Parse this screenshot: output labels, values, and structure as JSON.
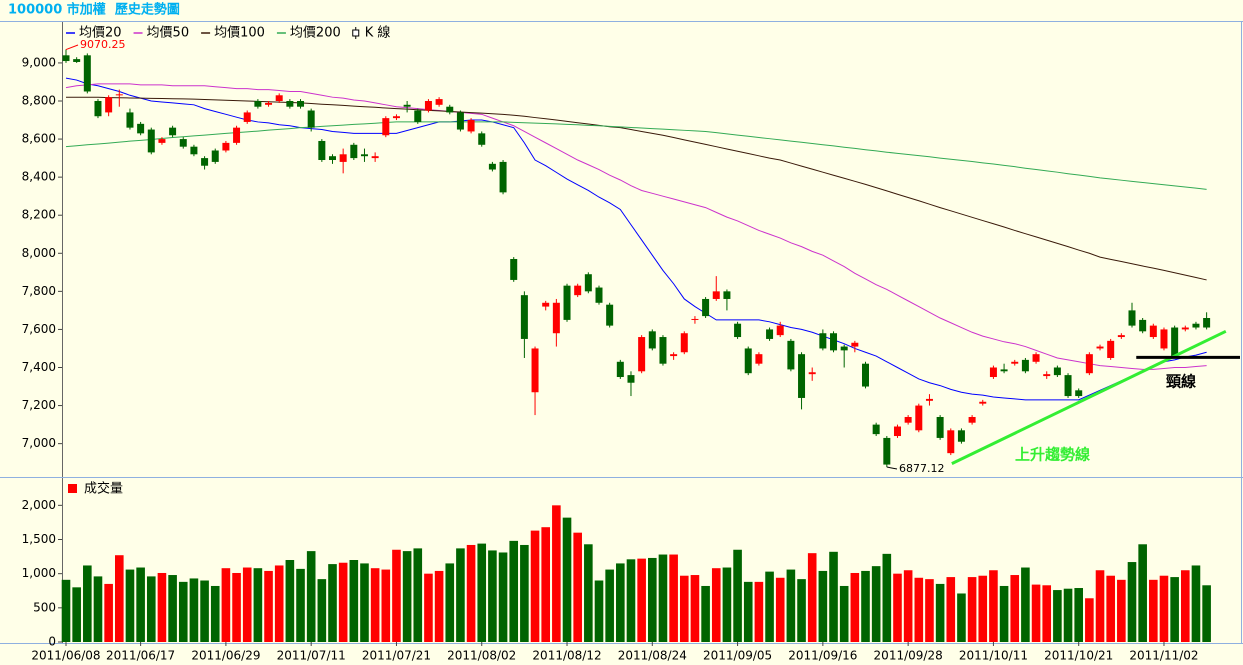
{
  "chart_data": {
    "type": "candlestick",
    "title": "100000 市加權  歷史走勢圖",
    "candle_name": "K 線",
    "up_color": "#ff0000",
    "down_color": "#006400",
    "categories": [
      "2011/06/08",
      null,
      null,
      null,
      null,
      null,
      null,
      "2011/06/17",
      null,
      null,
      null,
      null,
      null,
      null,
      null,
      "2011/06/29",
      null,
      null,
      null,
      null,
      null,
      null,
      null,
      "2011/07/11",
      null,
      null,
      null,
      null,
      null,
      null,
      null,
      "2011/07/21",
      null,
      null,
      null,
      null,
      null,
      null,
      null,
      "2011/08/02",
      null,
      null,
      null,
      null,
      null,
      null,
      null,
      "2011/08/12",
      null,
      null,
      null,
      null,
      null,
      null,
      null,
      "2011/08/24",
      null,
      null,
      null,
      null,
      null,
      null,
      null,
      "2011/09/05",
      null,
      null,
      null,
      null,
      null,
      null,
      null,
      "2011/09/16",
      null,
      null,
      null,
      null,
      null,
      null,
      null,
      "2011/09/28",
      null,
      null,
      null,
      null,
      null,
      null,
      null,
      "2011/10/11",
      null,
      null,
      null,
      null,
      null,
      null,
      null,
      "2011/10/21",
      null,
      null,
      null,
      null,
      null,
      null,
      null,
      "2011/11/02",
      null,
      null,
      null,
      null
    ],
    "open": [
      9040,
      9020,
      9040,
      8800,
      8740,
      8830,
      8740,
      8680,
      8650,
      8580,
      8660,
      8600,
      8560,
      8500,
      8540,
      8540,
      8580,
      8690,
      8800,
      8780,
      8800,
      8800,
      8800,
      8750,
      8590,
      8510,
      8480,
      8570,
      8520,
      8500,
      8620,
      8710,
      8780,
      8750,
      8750,
      8780,
      8770,
      8740,
      8640,
      8630,
      8470,
      8480,
      7970,
      7780,
      7270,
      7720,
      7580,
      7830,
      7780,
      7890,
      7820,
      7730,
      7430,
      7360,
      7380,
      7590,
      7560,
      7460,
      7480,
      7650,
      7760,
      7760,
      7800,
      7630,
      7500,
      7420,
      7600,
      7570,
      7540,
      7470,
      7365,
      7580,
      7580,
      7510,
      7510,
      7420,
      7100,
      7030,
      7040,
      7110,
      7070,
      7225,
      7140,
      6950,
      7070,
      7110,
      7210,
      7350,
      7390,
      7420,
      7440,
      7430,
      7355,
      7400,
      7360,
      7280,
      7370,
      7500,
      7450,
      7560,
      7700,
      7650,
      7560,
      7500,
      7610,
      7600,
      7630,
      7660
    ],
    "high": [
      9070.25,
      9030,
      9050,
      8810,
      8830,
      8860,
      8760,
      8690,
      8660,
      8610,
      8670,
      8610,
      8570,
      8510,
      8550,
      8590,
      8670,
      8750,
      8810,
      8800,
      8840,
      8810,
      8810,
      8760,
      8600,
      8520,
      8550,
      8580,
      8550,
      8530,
      8720,
      8730,
      8800,
      8760,
      8810,
      8820,
      8780,
      8750,
      8710,
      8640,
      8480,
      8490,
      7980,
      7800,
      7510,
      7750,
      7760,
      7840,
      7840,
      7900,
      7830,
      7740,
      7440,
      7380,
      7570,
      7600,
      7570,
      7480,
      7590,
      7670,
      7770,
      7880,
      7810,
      7640,
      7510,
      7480,
      7610,
      7640,
      7550,
      7480,
      7400,
      7600,
      7590,
      7520,
      7540,
      7430,
      7110,
      7040,
      7100,
      7150,
      7210,
      7260,
      7150,
      7080,
      7080,
      7150,
      7230,
      7410,
      7420,
      7440,
      7450,
      7480,
      7380,
      7410,
      7370,
      7290,
      7480,
      7520,
      7550,
      7580,
      7740,
      7660,
      7630,
      7610,
      7620,
      7620,
      7640,
      7690
    ],
    "low": [
      9000,
      9000,
      8840,
      8710,
      8720,
      8770,
      8650,
      8620,
      8520,
      8570,
      8610,
      8550,
      8510,
      8440,
      8470,
      8530,
      8570,
      8680,
      8760,
      8770,
      8790,
      8760,
      8760,
      8640,
      8480,
      8470,
      8420,
      8490,
      8480,
      8480,
      8610,
      8700,
      8740,
      8680,
      8740,
      8770,
      8730,
      8640,
      8630,
      8560,
      8430,
      8310,
      7850,
      7450,
      7150,
      7700,
      7510,
      7640,
      7770,
      7790,
      7730,
      7610,
      7340,
      7250,
      7370,
      7490,
      7410,
      7440,
      7470,
      7630,
      7660,
      7750,
      7700,
      7550,
      7360,
      7410,
      7540,
      7560,
      7380,
      7180,
      7330,
      7490,
      7480,
      7400,
      7480,
      7290,
      7040,
      6877.12,
      7030,
      7100,
      7060,
      7200,
      7020,
      6940,
      7000,
      7100,
      7200,
      7340,
      7370,
      7410,
      7370,
      7420,
      7340,
      7350,
      7240,
      7240,
      7360,
      7490,
      7440,
      7550,
      7610,
      7580,
      7550,
      7490,
      7450,
      7590,
      7600,
      7600
    ],
    "close": [
      9010,
      9005,
      8850,
      8720,
      8820,
      8835,
      8660,
      8630,
      8530,
      8600,
      8620,
      8560,
      8520,
      8460,
      8480,
      8580,
      8660,
      8740,
      8770,
      8790,
      8830,
      8770,
      8770,
      8660,
      8490,
      8490,
      8520,
      8500,
      8510,
      8510,
      8710,
      8720,
      8770,
      8690,
      8800,
      8810,
      8740,
      8650,
      8700,
      8570,
      8440,
      8320,
      7860,
      7550,
      7500,
      7740,
      7740,
      7650,
      7830,
      7800,
      7740,
      7620,
      7350,
      7320,
      7560,
      7500,
      7420,
      7470,
      7580,
      7655,
      7670,
      7800,
      7760,
      7560,
      7370,
      7470,
      7550,
      7620,
      7390,
      7240,
      7375,
      7500,
      7490,
      7490,
      7530,
      7300,
      7050,
      6890,
      7090,
      7140,
      7200,
      7235,
      7030,
      7070,
      7010,
      7140,
      7220,
      7400,
      7380,
      7430,
      7380,
      7470,
      7365,
      7360,
      7250,
      7250,
      7470,
      7510,
      7540,
      7570,
      7620,
      7590,
      7620,
      7600,
      7460,
      7610,
      7610,
      7610
    ],
    "series": [
      {
        "name": "均價20",
        "color": "#0000ff",
        "values": [
          8920,
          8910,
          8890,
          8880,
          8865,
          8850,
          8830,
          8815,
          8800,
          8795,
          8790,
          8785,
          8780,
          8760,
          8745,
          8730,
          8715,
          8700,
          8690,
          8685,
          8675,
          8670,
          8660,
          8655,
          8650,
          8640,
          8635,
          8630,
          8630,
          8630,
          8630,
          8630,
          8645,
          8660,
          8675,
          8690,
          8690,
          8695,
          8700,
          8700,
          8690,
          8675,
          8660,
          8580,
          8490,
          8460,
          8425,
          8390,
          8360,
          8330,
          8295,
          8265,
          8230,
          8150,
          8070,
          7990,
          7910,
          7840,
          7760,
          7720,
          7685,
          7650,
          7650,
          7650,
          7650,
          7650,
          7640,
          7625,
          7610,
          7600,
          7585,
          7565,
          7545,
          7525,
          7500,
          7480,
          7460,
          7430,
          7400,
          7370,
          7340,
          7320,
          7305,
          7285,
          7270,
          7260,
          7255,
          7245,
          7240,
          7235,
          7230,
          7230,
          7230,
          7230,
          7230,
          7230,
          7255,
          7280,
          7305,
          7330,
          7355,
          7380,
          7405,
          7430,
          7440,
          7455,
          7465,
          7480
        ]
      },
      {
        "name": "均價50",
        "color": "#cc33cc",
        "values": [
          8870,
          8880,
          8885,
          8890,
          8890,
          8890,
          8890,
          8885,
          8885,
          8885,
          8880,
          8880,
          8880,
          8880,
          8875,
          8870,
          8865,
          8865,
          8860,
          8860,
          8855,
          8850,
          8850,
          8840,
          8830,
          8820,
          8815,
          8805,
          8800,
          8790,
          8780,
          8770,
          8765,
          8760,
          8755,
          8750,
          8745,
          8740,
          8735,
          8730,
          8710,
          8690,
          8670,
          8640,
          8610,
          8580,
          8550,
          8520,
          8490,
          8465,
          8440,
          8410,
          8385,
          8355,
          8330,
          8315,
          8300,
          8285,
          8270,
          8255,
          8240,
          8215,
          8190,
          8170,
          8145,
          8120,
          8100,
          8080,
          8055,
          8035,
          8010,
          7990,
          7960,
          7930,
          7895,
          7865,
          7835,
          7810,
          7780,
          7750,
          7720,
          7690,
          7660,
          7635,
          7610,
          7585,
          7565,
          7550,
          7535,
          7525,
          7510,
          7490,
          7470,
          7450,
          7440,
          7430,
          7420,
          7410,
          7405,
          7400,
          7395,
          7390,
          7390,
          7395,
          7400,
          7400,
          7405,
          7410
        ]
      },
      {
        "name": "均價100",
        "color": "#3a1a0a",
        "values": [
          8820,
          8820,
          8820,
          8820,
          8818,
          8817,
          8816,
          8815,
          8814,
          8813,
          8812,
          8811,
          8810,
          8808,
          8806,
          8804,
          8802,
          8800,
          8798,
          8796,
          8794,
          8792,
          8790,
          8787,
          8783,
          8780,
          8777,
          8773,
          8770,
          8767,
          8763,
          8760,
          8757,
          8754,
          8751,
          8748,
          8745,
          8742,
          8739,
          8736,
          8733,
          8730,
          8725,
          8720,
          8713,
          8707,
          8700,
          8693,
          8686,
          8679,
          8672,
          8665,
          8660,
          8650,
          8640,
          8630,
          8620,
          8608,
          8596,
          8584,
          8572,
          8560,
          8548,
          8536,
          8524,
          8512,
          8500,
          8490,
          8474,
          8458,
          8442,
          8426,
          8410,
          8394,
          8378,
          8362,
          8345,
          8328,
          8310,
          8293,
          8276,
          8258,
          8240,
          8223,
          8206,
          8189,
          8172,
          8155,
          8138,
          8120,
          8103,
          8086,
          8069,
          8052,
          8035,
          8017,
          8000,
          7980,
          7968,
          7957,
          7945,
          7933,
          7922,
          7910,
          7898,
          7885,
          7873,
          7860
        ]
      },
      {
        "name": "均價200",
        "color": "#33aa55",
        "values": [
          8560,
          8565,
          8570,
          8574,
          8579,
          8584,
          8589,
          8593,
          8598,
          8603,
          8608,
          8612,
          8617,
          8621,
          8625,
          8630,
          8634,
          8638,
          8642,
          8647,
          8651,
          8655,
          8660,
          8663,
          8667,
          8670,
          8673,
          8677,
          8680,
          8683,
          8687,
          8690,
          8690,
          8690,
          8690,
          8690,
          8690,
          8690,
          8690,
          8690,
          8690,
          8690,
          8688,
          8686,
          8684,
          8682,
          8680,
          8677,
          8675,
          8672,
          8670,
          8667,
          8664,
          8661,
          8658,
          8655,
          8652,
          8649,
          8646,
          8643,
          8640,
          8634,
          8627,
          8621,
          8615,
          8608,
          8602,
          8596,
          8589,
          8583,
          8577,
          8570,
          8564,
          8557,
          8551,
          8544,
          8538,
          8531,
          8525,
          8519,
          8513,
          8507,
          8500,
          8494,
          8488,
          8482,
          8475,
          8469,
          8462,
          8455,
          8447,
          8440,
          8433,
          8426,
          8418,
          8411,
          8404,
          8396,
          8390,
          8384,
          8378,
          8372,
          8366,
          8360,
          8354,
          8348,
          8342,
          8336
        ]
      }
    ],
    "ylim": [
      6830,
      9215
    ],
    "yticks": [
      {
        "value": 7000,
        "label": "7,000"
      },
      {
        "value": 7200,
        "label": "7,200"
      },
      {
        "value": 7400,
        "label": "7,400"
      },
      {
        "value": 7600,
        "label": "7,600"
      },
      {
        "value": 7800,
        "label": "7,800"
      },
      {
        "value": 8000,
        "label": "8,000"
      },
      {
        "value": 8200,
        "label": "8,200"
      },
      {
        "value": 8400,
        "label": "8,400"
      },
      {
        "value": 8600,
        "label": "8,600"
      },
      {
        "value": 8800,
        "label": "8,800"
      },
      {
        "value": 9000,
        "label": "9,000"
      }
    ],
    "max_label": 9070.25,
    "min_label": 6877.12,
    "trend_line": {
      "label": "上升趨勢線",
      "color": "#33ee33",
      "x": [
        83.1,
        108.8
      ],
      "y": [
        6895,
        7590
      ]
    },
    "neck_line": {
      "label": "頸線",
      "color": "#000000",
      "x": [
        100.4,
        110.4
      ],
      "y": [
        7453,
        7453
      ]
    },
    "volume": {
      "name": "成交量",
      "ylim": [
        0,
        2400
      ],
      "yticks": [
        0,
        500,
        {
          "value": 1000,
          "label": "1,000"
        },
        {
          "value": 1500,
          "label": "1,500"
        },
        {
          "value": 2000,
          "label": "2,000"
        }
      ],
      "values": [
        910,
        800,
        1120,
        960,
        850,
        1270,
        1060,
        1090,
        960,
        1010,
        980,
        880,
        930,
        900,
        820,
        1080,
        1010,
        1090,
        1080,
        1040,
        1120,
        1200,
        1070,
        1330,
        920,
        1140,
        1160,
        1200,
        1150,
        1080,
        1060,
        1350,
        1330,
        1370,
        1000,
        1040,
        1150,
        1370,
        1420,
        1440,
        1340,
        1310,
        1480,
        1420,
        1630,
        1680,
        2000,
        1820,
        1600,
        1430,
        900,
        1060,
        1150,
        1210,
        1220,
        1230,
        1280,
        1280,
        970,
        980,
        820,
        1080,
        1090,
        1350,
        880,
        880,
        1030,
        940,
        1060,
        920,
        1300,
        1040,
        1320,
        820,
        1010,
        1040,
        1110,
        1290,
        1000,
        1050,
        940,
        920,
        850,
        950,
        710,
        950,
        970,
        1050,
        820,
        980,
        1090,
        840,
        830,
        760,
        780,
        790,
        640,
        1050,
        970,
        910,
        1170,
        1430,
        910,
        970,
        950,
        1050,
        1120,
        830
      ]
    }
  }
}
